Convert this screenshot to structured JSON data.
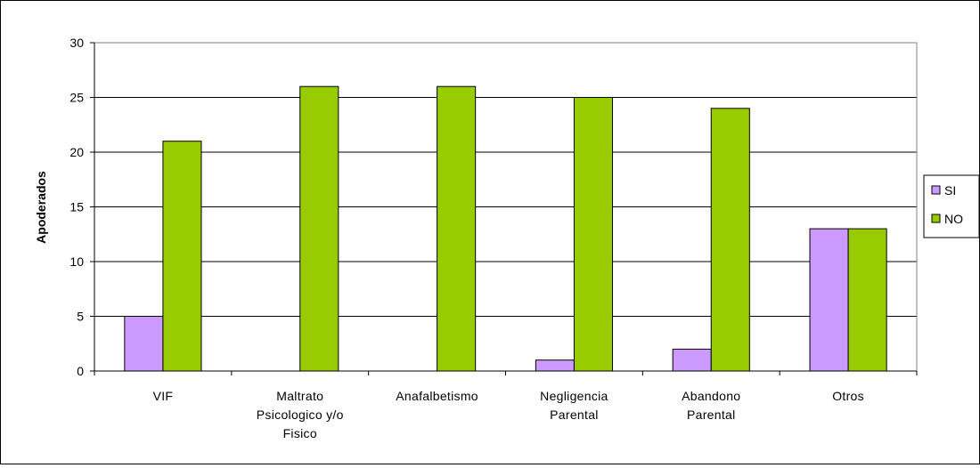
{
  "chart_data": {
    "type": "bar",
    "categories": [
      [
        "VIF"
      ],
      [
        "Maltrato",
        "Psicologico y/o",
        "Fisico"
      ],
      [
        "Anafalbetismo"
      ],
      [
        "Negligencia",
        "Parental"
      ],
      [
        "Abandono",
        "Parental"
      ],
      [
        "Otros"
      ]
    ],
    "series": [
      {
        "name": "SI",
        "values": [
          5,
          0,
          0,
          1,
          2,
          13
        ],
        "color": "#cc99ff"
      },
      {
        "name": "NO",
        "values": [
          21,
          26,
          26,
          25,
          24,
          13
        ],
        "color": "#99cc00"
      }
    ],
    "xlabel": "",
    "ylabel": "Apoderados",
    "ylim": [
      0,
      30
    ],
    "yticks": [
      0,
      5,
      10,
      15,
      20,
      25,
      30
    ],
    "grid": true,
    "legend": "right"
  }
}
